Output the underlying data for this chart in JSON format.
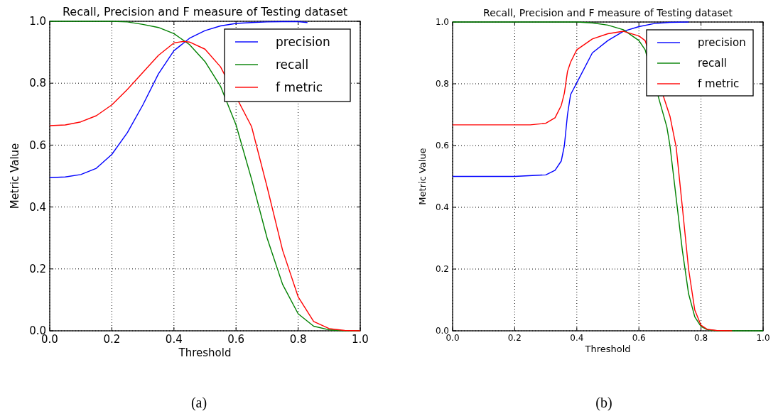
{
  "chart_data": [
    {
      "type": "line",
      "title": "Recall, Precision and F measure of Testing dataset",
      "xlabel": "Threshold",
      "ylabel": "Metric Value",
      "annotations": [
        "(a)"
      ],
      "legend": "top right",
      "grid": true,
      "line_style": "solid",
      "xlim": [
        0,
        1
      ],
      "ylim": [
        0,
        1
      ],
      "xticks": [
        {
          "value": 0,
          "label": "0.0"
        },
        {
          "value": 0.2,
          "label": "0.2"
        },
        {
          "value": 0.4,
          "label": "0.4"
        },
        {
          "value": 0.6,
          "label": "0.6"
        },
        {
          "value": 0.8,
          "label": "0.8"
        },
        {
          "value": 1,
          "label": "1.0"
        }
      ],
      "yticks": [
        {
          "value": 0,
          "label": "0.0"
        },
        {
          "value": 0.2,
          "label": "0.2"
        },
        {
          "value": 0.4,
          "label": "0.4"
        },
        {
          "value": 0.6,
          "label": "0.6"
        },
        {
          "value": 0.8,
          "label": "0.8"
        },
        {
          "value": 1,
          "label": "1.0"
        }
      ],
      "series": [
        {
          "name": "precision",
          "color": "#0000ff",
          "x": [
            0,
            0.05,
            0.1,
            0.15,
            0.2,
            0.25,
            0.3,
            0.35,
            0.4,
            0.45,
            0.5,
            0.55,
            0.6,
            0.65,
            0.7,
            0.75,
            0.8,
            0.83
          ],
          "values": [
            0.495,
            0.497,
            0.505,
            0.525,
            0.57,
            0.64,
            0.73,
            0.83,
            0.905,
            0.945,
            0.97,
            0.985,
            0.993,
            0.996,
            0.998,
            0.999,
            0.999,
            0.996
          ]
        },
        {
          "name": "recall",
          "color": "#008000",
          "x": [
            0,
            0.1,
            0.2,
            0.25,
            0.3,
            0.35,
            0.4,
            0.45,
            0.5,
            0.55,
            0.6,
            0.65,
            0.7,
            0.75,
            0.8,
            0.85,
            0.9,
            0.95,
            1
          ],
          "values": [
            1,
            1,
            1,
            0.998,
            0.99,
            0.98,
            0.96,
            0.925,
            0.87,
            0.79,
            0.665,
            0.49,
            0.3,
            0.15,
            0.055,
            0.015,
            0.003,
            0,
            0
          ]
        },
        {
          "name": "f metric",
          "color": "#ff0000",
          "x": [
            0,
            0.05,
            0.1,
            0.15,
            0.2,
            0.25,
            0.3,
            0.35,
            0.4,
            0.43,
            0.45,
            0.5,
            0.55,
            0.65,
            0.7,
            0.75,
            0.8,
            0.85,
            0.9,
            0.95,
            1
          ],
          "values": [
            0.663,
            0.665,
            0.675,
            0.695,
            0.73,
            0.78,
            0.835,
            0.89,
            0.93,
            0.935,
            0.933,
            0.91,
            0.853,
            0.66,
            0.465,
            0.26,
            0.11,
            0.03,
            0.007,
            0.001,
            0
          ]
        }
      ]
    },
    {
      "type": "line",
      "title": "Recall, Precision and F measure of Testing dataset",
      "xlabel": "Threshold",
      "ylabel": "Metric Value",
      "annotations": [
        "(b)"
      ],
      "legend": "top right",
      "grid": true,
      "line_style": "solid",
      "xlim": [
        0,
        1
      ],
      "ylim": [
        0,
        1
      ],
      "xticks": [
        {
          "value": 0,
          "label": "0.0"
        },
        {
          "value": 0.2,
          "label": "0.2"
        },
        {
          "value": 0.4,
          "label": "0.4"
        },
        {
          "value": 0.6,
          "label": "0.6"
        },
        {
          "value": 0.8,
          "label": "0.8"
        },
        {
          "value": 1,
          "label": "1.0"
        }
      ],
      "yticks": [
        {
          "value": 0,
          "label": "0.0"
        },
        {
          "value": 0.2,
          "label": "0.2"
        },
        {
          "value": 0.4,
          "label": "0.4"
        },
        {
          "value": 0.6,
          "label": "0.6"
        },
        {
          "value": 0.8,
          "label": "0.8"
        },
        {
          "value": 1,
          "label": "1.0"
        }
      ],
      "series": [
        {
          "name": "precision",
          "color": "#0000ff",
          "x": [
            0,
            0.1,
            0.2,
            0.3,
            0.33,
            0.35,
            0.36,
            0.37,
            0.38,
            0.4,
            0.45,
            0.5,
            0.55,
            0.6,
            0.65,
            0.7,
            0.76
          ],
          "values": [
            0.5,
            0.5,
            0.5,
            0.505,
            0.52,
            0.55,
            0.6,
            0.7,
            0.765,
            0.803,
            0.9,
            0.94,
            0.97,
            0.985,
            0.995,
            0.999,
            1
          ]
        },
        {
          "name": "recall",
          "color": "#008000",
          "x": [
            0,
            0.2,
            0.4,
            0.45,
            0.5,
            0.55,
            0.6,
            0.62,
            0.69,
            0.7,
            0.72,
            0.74,
            0.76,
            0.78,
            0.8,
            0.82,
            0.85,
            1
          ],
          "values": [
            1,
            1,
            1,
            0.997,
            0.99,
            0.975,
            0.94,
            0.91,
            0.66,
            0.6,
            0.43,
            0.26,
            0.12,
            0.045,
            0.014,
            0.004,
            0,
            0
          ]
        },
        {
          "name": "f metric",
          "color": "#ff0000",
          "x": [
            0,
            0.1,
            0.2,
            0.25,
            0.3,
            0.33,
            0.35,
            0.36,
            0.37,
            0.38,
            0.4,
            0.45,
            0.5,
            0.55,
            0.6,
            0.62,
            0.7,
            0.72,
            0.74,
            0.76,
            0.78,
            0.8,
            0.82,
            0.85,
            0.9
          ],
          "values": [
            0.667,
            0.667,
            0.667,
            0.667,
            0.672,
            0.69,
            0.73,
            0.77,
            0.84,
            0.87,
            0.91,
            0.945,
            0.962,
            0.97,
            0.955,
            0.94,
            0.695,
            0.595,
            0.4,
            0.2,
            0.067,
            0.018,
            0.005,
            0.001,
            0
          ]
        }
      ]
    }
  ]
}
